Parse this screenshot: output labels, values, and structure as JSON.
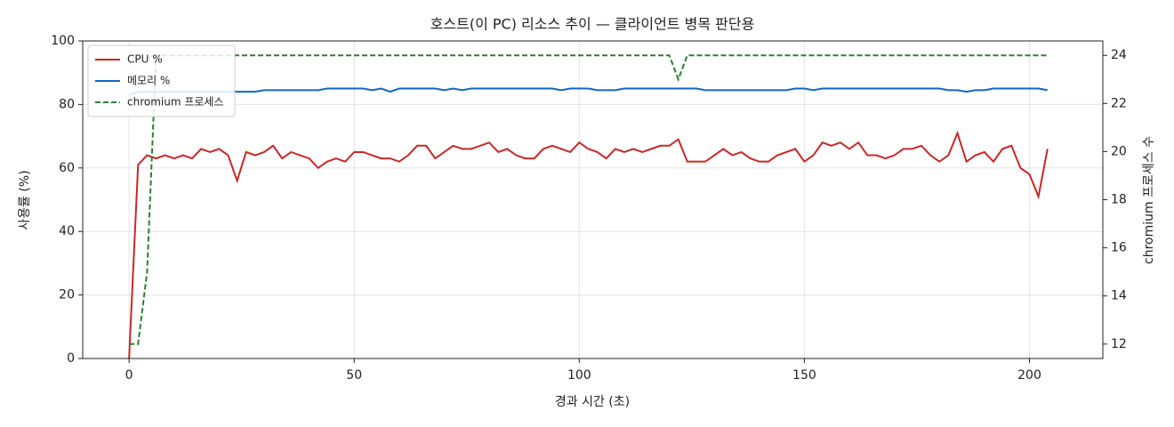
{
  "chart_data": {
    "type": "line",
    "title": "호스트(이 PC) 리소스 추이 — 클라이언트 병목 판단용",
    "x_label": "경과 시간 (초)",
    "y_label": "사용률 (%)",
    "y2_label": "chromium 프로세스 수",
    "x": [
      0,
      2,
      4,
      6,
      8,
      10,
      12,
      14,
      16,
      18,
      20,
      22,
      24,
      26,
      28,
      30,
      32,
      34,
      36,
      38,
      40,
      42,
      44,
      46,
      48,
      50,
      52,
      54,
      56,
      58,
      60,
      62,
      64,
      66,
      68,
      70,
      72,
      74,
      76,
      78,
      80,
      82,
      84,
      86,
      88,
      90,
      92,
      94,
      96,
      98,
      100,
      102,
      104,
      106,
      108,
      110,
      112,
      114,
      116,
      118,
      120,
      122,
      124,
      126,
      128,
      130,
      132,
      134,
      136,
      138,
      140,
      142,
      144,
      146,
      148,
      150,
      152,
      154,
      156,
      158,
      160,
      162,
      164,
      166,
      168,
      170,
      172,
      174,
      176,
      178,
      180,
      182,
      184,
      186,
      188,
      190,
      192,
      194,
      196,
      198,
      200,
      202,
      204
    ],
    "series": [
      {
        "name": "CPU %",
        "color": "#c62828",
        "linestyle": "solid",
        "axis": "y",
        "values": [
          0,
          61,
          64,
          63,
          64,
          63,
          64,
          63,
          66,
          65,
          66,
          64,
          56,
          65,
          64,
          65,
          67,
          63,
          65,
          64,
          63,
          60,
          62,
          63,
          62,
          65,
          65,
          64,
          63,
          63,
          62,
          64,
          67,
          67,
          63,
          65,
          67,
          66,
          66,
          67,
          68,
          65,
          66,
          64,
          63,
          63,
          66,
          67,
          66,
          65,
          68,
          66,
          65,
          63,
          66,
          65,
          66,
          65,
          66,
          67,
          67,
          69,
          62,
          62,
          62,
          64,
          66,
          64,
          65,
          63,
          62,
          62,
          64,
          65,
          66,
          62,
          64,
          68,
          67,
          68,
          66,
          68,
          64,
          64,
          63,
          64,
          66,
          66,
          67,
          64,
          62,
          64,
          71,
          62,
          64,
          65,
          62,
          66,
          67,
          60,
          58,
          51,
          66
        ]
      },
      {
        "name": "메모리 %",
        "color": "#1565c0",
        "linestyle": "solid",
        "axis": "y",
        "values": [
          83,
          84,
          84,
          84,
          84,
          84,
          84,
          84,
          84,
          84,
          84,
          84,
          84,
          84,
          84,
          84.5,
          84.5,
          84.5,
          84.5,
          84.5,
          84.5,
          84.5,
          85,
          85,
          85,
          85,
          85,
          84.5,
          85,
          84,
          85,
          85,
          85,
          85,
          85,
          84.5,
          85,
          84.5,
          85,
          85,
          85,
          85,
          85,
          85,
          85,
          85,
          85,
          85,
          84.5,
          85,
          85,
          85,
          84.5,
          84.5,
          84.5,
          85,
          85,
          85,
          85,
          85,
          85,
          85,
          85,
          85,
          84.5,
          84.5,
          84.5,
          84.5,
          84.5,
          84.5,
          84.5,
          84.5,
          84.5,
          84.5,
          85,
          85,
          84.5,
          85,
          85,
          85,
          85,
          85,
          85,
          85,
          85,
          85,
          85,
          85,
          85,
          85,
          85,
          84.5,
          84.5,
          84,
          84.5,
          84.5,
          85,
          85,
          85,
          85,
          85,
          85,
          84.5
        ]
      },
      {
        "name": "chromium 프로세스",
        "color": "#2e7d32",
        "linestyle": "dashed",
        "axis": "y2",
        "values": [
          12,
          12,
          15,
          24,
          24,
          24,
          24,
          24,
          24,
          24,
          24,
          24,
          24,
          24,
          24,
          24,
          24,
          24,
          24,
          24,
          24,
          24,
          24,
          24,
          24,
          24,
          24,
          24,
          24,
          24,
          24,
          24,
          24,
          24,
          24,
          24,
          24,
          24,
          24,
          24,
          24,
          24,
          24,
          24,
          24,
          24,
          24,
          24,
          24,
          24,
          24,
          24,
          24,
          24,
          24,
          24,
          24,
          24,
          24,
          24,
          24,
          23,
          24,
          24,
          24,
          24,
          24,
          24,
          24,
          24,
          24,
          24,
          24,
          24,
          24,
          24,
          24,
          24,
          24,
          24,
          24,
          24,
          24,
          24,
          24,
          24,
          24,
          24,
          24,
          24,
          24,
          24,
          24,
          24,
          24,
          24,
          24,
          24,
          24,
          24,
          24,
          24,
          24
        ]
      }
    ],
    "xlim": [
      -10.3,
      216.3
    ],
    "xticks": [
      0,
      50,
      100,
      150,
      200
    ],
    "ylim": [
      0,
      100
    ],
    "yticks": [
      0,
      20,
      40,
      60,
      80,
      100
    ],
    "y2lim": [
      11.4,
      24.6
    ],
    "y2ticks": [
      12,
      14,
      16,
      18,
      20,
      22,
      24
    ],
    "grid": true,
    "legend": "upper-left"
  }
}
